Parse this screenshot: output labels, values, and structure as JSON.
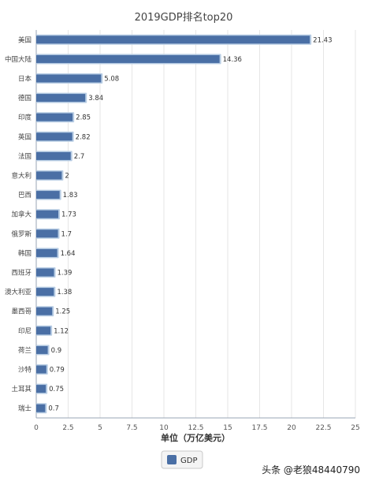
{
  "chart_data": {
    "type": "bar",
    "orientation": "horizontal",
    "title": "2019GDP排名top20",
    "xlabel": "单位（万亿美元）",
    "ylabel": "",
    "xlim": [
      0,
      25
    ],
    "x_ticks": [
      "0",
      "2.5",
      "5",
      "7.5",
      "10",
      "12.5",
      "15",
      "17.5",
      "20",
      "22.5",
      "25"
    ],
    "grid": "vertical",
    "legend_position": "bottom-center",
    "categories": [
      "美国",
      "中国大陆",
      "日本",
      "德国",
      "印度",
      "英国",
      "法国",
      "意大利",
      "巴西",
      "加拿大",
      "俄罗斯",
      "韩国",
      "西班牙",
      "澳大利亚",
      "墨西哥",
      "印尼",
      "荷兰",
      "沙特",
      "土耳其",
      "瑞士"
    ],
    "series": [
      {
        "name": "GDP",
        "values": [
          21.43,
          14.36,
          5.08,
          3.84,
          2.85,
          2.82,
          2.7,
          2,
          1.83,
          1.73,
          1.7,
          1.64,
          1.39,
          1.38,
          1.25,
          1.12,
          0.9,
          0.79,
          0.75,
          0.7
        ],
        "labels": [
          "21.43",
          "14.36",
          "5.08",
          "3.84",
          "2.85",
          "2.82",
          "2.7",
          "2",
          "1.83",
          "1.73",
          "1.7",
          "1.64",
          "1.39",
          "1.38",
          "1.25",
          "1.12",
          "0.9",
          "0.79",
          "0.75",
          "0.7"
        ],
        "color": "#4a6fa5"
      }
    ]
  },
  "watermark": "头条 @老狼48440790",
  "colors": {
    "bar_fill": "#4a6fa5",
    "bar_border": "#b8cde4",
    "grid": "#e6e6e6",
    "axis": "#9aa4b4"
  }
}
